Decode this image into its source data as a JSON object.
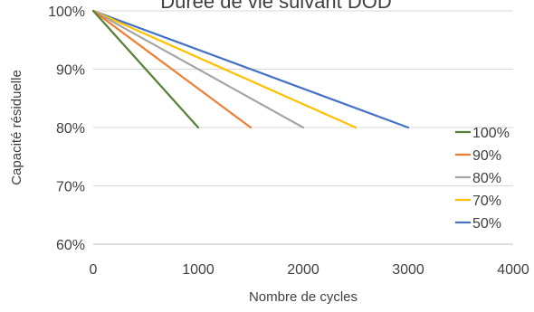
{
  "chart_data": {
    "type": "line",
    "title": "Durée de vie suivant DOD",
    "xlabel": "Nombre de cycles",
    "ylabel": "Capacité résiduelle",
    "xlim": [
      0,
      4000
    ],
    "ylim": [
      60,
      100
    ],
    "x_ticks": [
      0,
      1000,
      2000,
      3000,
      4000
    ],
    "x_tick_labels": [
      "0",
      "1000",
      "2000",
      "3000",
      "4000"
    ],
    "y_ticks": [
      60,
      70,
      80,
      90,
      100
    ],
    "y_tick_labels": [
      "60%",
      "70%",
      "80%",
      "90%",
      "100%"
    ],
    "grid": true,
    "legend_position": "right",
    "series": [
      {
        "name": "100%",
        "color": "#548235",
        "x": [
          0,
          1000
        ],
        "y": [
          100,
          80
        ]
      },
      {
        "name": "90%",
        "color": "#ED7D31",
        "x": [
          0,
          1500
        ],
        "y": [
          100,
          80
        ]
      },
      {
        "name": "80%",
        "color": "#A5A5A5",
        "x": [
          0,
          2000
        ],
        "y": [
          100,
          80
        ]
      },
      {
        "name": "70%",
        "color": "#FFC000",
        "x": [
          0,
          2500
        ],
        "y": [
          100,
          80
        ]
      },
      {
        "name": "50%",
        "color": "#4472C4",
        "x": [
          0,
          3000
        ],
        "y": [
          100,
          80
        ]
      }
    ]
  }
}
